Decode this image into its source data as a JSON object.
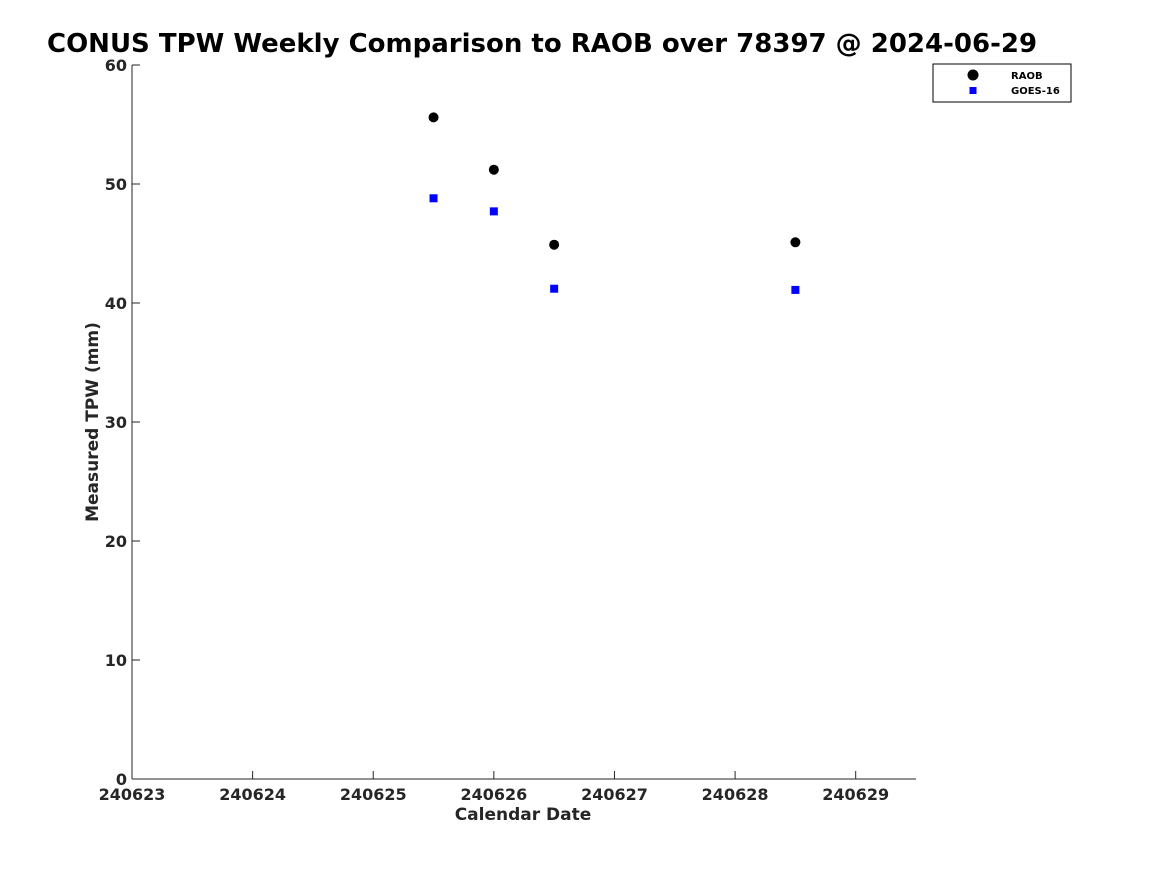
{
  "chart_data": {
    "type": "scatter",
    "title": "CONUS TPW Weekly Comparison to RAOB over 78397 @ 2024-06-29",
    "xlabel": "Calendar Date",
    "ylabel": "Measured TPW (mm)",
    "x_ticks": [
      "240623",
      "240624",
      "240625",
      "240626",
      "240627",
      "240628",
      "240629"
    ],
    "xlim": [
      "2024-06-23 00:00",
      "2024-06-29 12:00"
    ],
    "y_ticks": [
      "0",
      "10",
      "20",
      "30",
      "40",
      "50",
      "60"
    ],
    "ylim": [
      0,
      60
    ],
    "grid": false,
    "legend_position": "top-right",
    "series": [
      {
        "name": "RAOB",
        "marker": "circle",
        "color": "#000000",
        "points": [
          {
            "x": "2024-06-25 12:00",
            "y": 55.6
          },
          {
            "x": "2024-06-26 00:00",
            "y": 51.2
          },
          {
            "x": "2024-06-26 12:00",
            "y": 44.9
          },
          {
            "x": "2024-06-28 12:00",
            "y": 45.1
          }
        ]
      },
      {
        "name": "GOES-16",
        "marker": "square",
        "color": "#0000ff",
        "points": [
          {
            "x": "2024-06-25 12:00",
            "y": 48.8
          },
          {
            "x": "2024-06-26 00:00",
            "y": 47.7
          },
          {
            "x": "2024-06-26 12:00",
            "y": 41.2
          },
          {
            "x": "2024-06-28 12:00",
            "y": 41.1
          }
        ]
      }
    ]
  }
}
